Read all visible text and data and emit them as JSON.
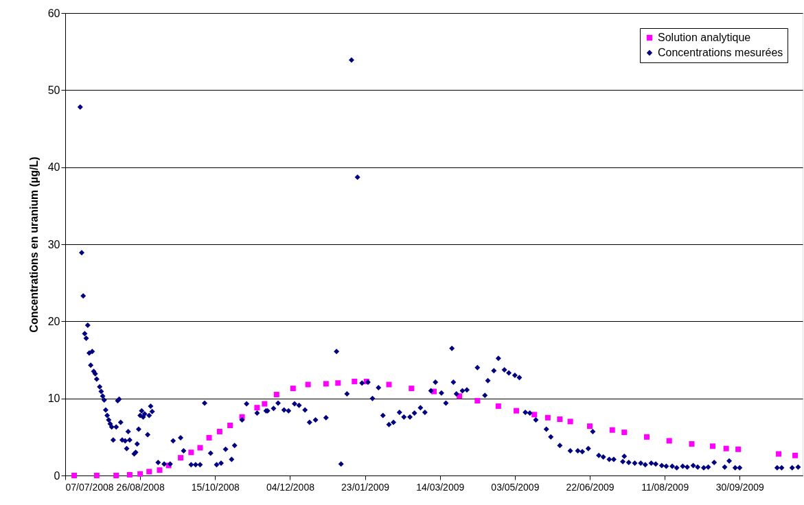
{
  "chart_data": {
    "type": "scatter",
    "ylabel": "Concentrations en uranium (µg/L)",
    "xlim": [
      "2008-07-07",
      "2009-11-11"
    ],
    "xticks": [
      {
        "value": "2008-07-07",
        "label": "07/07/2008"
      },
      {
        "value": "2008-08-26",
        "label": "26/08/2008"
      },
      {
        "value": "2008-10-15",
        "label": "15/10/2008"
      },
      {
        "value": "2008-12-04",
        "label": "04/12/2008"
      },
      {
        "value": "2009-01-23",
        "label": "23/01/2009"
      },
      {
        "value": "2009-03-14",
        "label": "14/03/2009"
      },
      {
        "value": "2009-05-03",
        "label": "03/05/2009"
      },
      {
        "value": "2009-06-22",
        "label": "22/06/2009"
      },
      {
        "value": "2009-08-11",
        "label": "11/08/2009"
      },
      {
        "value": "2009-09-30",
        "label": "30/09/2009"
      }
    ],
    "ylim": [
      0,
      60
    ],
    "yticks": [
      0,
      10,
      20,
      30,
      40,
      50,
      60
    ],
    "grid": "y",
    "legend": "top right",
    "series": [
      {
        "name": "Solution analytique",
        "color": "#ff00ff",
        "marker": "square",
        "x": [
          "2008-07-13",
          "2008-07-28",
          "2008-08-10",
          "2008-08-19",
          "2008-08-26",
          "2008-09-01",
          "2008-09-08",
          "2008-09-14",
          "2008-09-22",
          "2008-09-29",
          "2008-10-05",
          "2008-10-11",
          "2008-10-18",
          "2008-10-25",
          "2008-11-02",
          "2008-11-12",
          "2008-11-17",
          "2008-11-25",
          "2008-12-06",
          "2008-12-16",
          "2008-12-28",
          "2009-01-05",
          "2009-01-16",
          "2009-01-24",
          "2009-02-08",
          "2009-02-23",
          "2009-03-10",
          "2009-03-27",
          "2009-04-08",
          "2009-04-22",
          "2009-05-04",
          "2009-05-16",
          "2009-05-25",
          "2009-06-02",
          "2009-06-09",
          "2009-06-22",
          "2009-07-07",
          "2009-07-15",
          "2009-07-30",
          "2009-08-14",
          "2009-08-29",
          "2009-09-12",
          "2009-09-21",
          "2009-09-29",
          "2009-10-26",
          "2009-11-06"
        ],
        "values": [
          0.0,
          0.0,
          0.0,
          0.1,
          0.2,
          0.5,
          0.7,
          1.3,
          2.3,
          3.0,
          3.6,
          4.9,
          5.7,
          6.5,
          7.6,
          8.8,
          9.3,
          10.5,
          11.3,
          11.8,
          11.9,
          12.0,
          12.2,
          12.2,
          11.8,
          11.3,
          10.9,
          10.3,
          9.7,
          9.0,
          8.4,
          7.9,
          7.5,
          7.3,
          7.0,
          6.4,
          5.9,
          5.6,
          5.0,
          4.5,
          4.1,
          3.8,
          3.5,
          3.4,
          2.8,
          2.6
        ]
      },
      {
        "name": "Concentrations mesurées",
        "color": "#000080",
        "marker": "diamond",
        "x": [
          "2008-07-17",
          "2008-07-18",
          "2008-07-19",
          "2008-07-20",
          "2008-07-21",
          "2008-07-22",
          "2008-07-23",
          "2008-07-24",
          "2008-07-25",
          "2008-07-26",
          "2008-07-27",
          "2008-07-28",
          "2008-07-30",
          "2008-07-31",
          "2008-08-01",
          "2008-08-02",
          "2008-08-03",
          "2008-08-04",
          "2008-08-05",
          "2008-08-06",
          "2008-08-07",
          "2008-08-08",
          "2008-08-10",
          "2008-08-11",
          "2008-08-12",
          "2008-08-13",
          "2008-08-14",
          "2008-08-16",
          "2008-08-17",
          "2008-08-18",
          "2008-08-19",
          "2008-08-22",
          "2008-08-23",
          "2008-08-24",
          "2008-08-25",
          "2008-08-26",
          "2008-08-27",
          "2008-08-28",
          "2008-08-29",
          "2008-08-31",
          "2008-09-01",
          "2008-09-02",
          "2008-09-03",
          "2008-09-07",
          "2008-09-11",
          "2008-09-15",
          "2008-09-17",
          "2008-09-22",
          "2008-09-24",
          "2008-09-29",
          "2008-10-02",
          "2008-10-05",
          "2008-10-08",
          "2008-10-12",
          "2008-10-16",
          "2008-10-19",
          "2008-10-22",
          "2008-10-26",
          "2008-10-28",
          "2008-11-02",
          "2008-11-05",
          "2008-11-12",
          "2008-11-18",
          "2008-11-19",
          "2008-11-23",
          "2008-11-26",
          "2008-11-30",
          "2008-12-03",
          "2008-12-07",
          "2008-12-10",
          "2008-12-14",
          "2008-12-17",
          "2008-12-21",
          "2008-12-28",
          "2009-01-04",
          "2009-01-07",
          "2009-01-11",
          "2009-01-14",
          "2009-01-18",
          "2009-01-21",
          "2009-01-25",
          "2009-01-28",
          "2009-02-01",
          "2009-02-04",
          "2009-02-08",
          "2009-02-11",
          "2009-02-15",
          "2009-02-18",
          "2009-02-22",
          "2009-02-25",
          "2009-03-01",
          "2009-03-04",
          "2009-03-08",
          "2009-03-11",
          "2009-03-15",
          "2009-03-18",
          "2009-03-22",
          "2009-03-23",
          "2009-03-25",
          "2009-03-29",
          "2009-04-01",
          "2009-04-08",
          "2009-04-13",
          "2009-04-15",
          "2009-04-19",
          "2009-04-22",
          "2009-04-26",
          "2009-04-29",
          "2009-05-03",
          "2009-05-06",
          "2009-05-10",
          "2009-05-13",
          "2009-05-17",
          "2009-05-24",
          "2009-05-27",
          "2009-06-02",
          "2009-06-09",
          "2009-06-14",
          "2009-06-17",
          "2009-06-21",
          "2009-06-24",
          "2009-06-28",
          "2009-07-01",
          "2009-07-05",
          "2009-07-08",
          "2009-07-14",
          "2009-07-15",
          "2009-07-18",
          "2009-07-22",
          "2009-07-26",
          "2009-07-29",
          "2009-08-02",
          "2009-08-05",
          "2009-08-09",
          "2009-08-12",
          "2009-08-16",
          "2009-08-19",
          "2009-08-23",
          "2009-08-26",
          "2009-08-30",
          "2009-09-02",
          "2009-09-06",
          "2009-09-09",
          "2009-09-13",
          "2009-09-20",
          "2009-09-23",
          "2009-09-27",
          "2009-09-30",
          "2009-10-25",
          "2009-10-28",
          "2009-11-04",
          "2009-11-08"
        ],
        "values": [
          47.8,
          28.9,
          23.3,
          18.4,
          17.8,
          19.5,
          15.9,
          14.3,
          16.1,
          13.5,
          13.2,
          12.5,
          11.5,
          10.9,
          10.3,
          9.8,
          8.5,
          7.8,
          7.2,
          6.7,
          6.3,
          4.6,
          6.3,
          9.7,
          9.9,
          6.9,
          4.6,
          4.5,
          3.5,
          5.7,
          4.6,
          2.8,
          3.0,
          4.1,
          6.0,
          7.8,
          8.4,
          7.6,
          8.0,
          5.3,
          7.8,
          9.0,
          8.3,
          1.7,
          1.5,
          1.5,
          4.5,
          4.9,
          3.2,
          1.4,
          1.4,
          1.4,
          9.4,
          2.9,
          1.4,
          1.6,
          3.4,
          2.1,
          3.9,
          7.2,
          9.3,
          8.1,
          8.4,
          8.4,
          8.7,
          9.4,
          8.5,
          8.4,
          9.3,
          9.1,
          8.5,
          6.9,
          7.2,
          7.5,
          16.1,
          1.5,
          10.6,
          53.9,
          38.7,
          12.0,
          12.1,
          10.0,
          11.4,
          7.8,
          6.6,
          6.9,
          8.2,
          7.6,
          7.6,
          8.1,
          8.8,
          8.2,
          11.0,
          12.1,
          10.7,
          9.4,
          16.5,
          12.1,
          10.6,
          11.0,
          11.1,
          14.0,
          10.4,
          12.3,
          13.6,
          15.2,
          13.7,
          13.3,
          13.0,
          12.7,
          8.2,
          8.1,
          7.2,
          6.0,
          5.0,
          3.9,
          3.2,
          3.2,
          3.1,
          3.5,
          5.7,
          2.6,
          2.4,
          2.1,
          2.1,
          1.8,
          2.5,
          1.7,
          1.6,
          1.6,
          1.4,
          1.6,
          1.5,
          1.3,
          1.2,
          1.2,
          1.0,
          1.2,
          1.1,
          1.3,
          1.1,
          1.0,
          1.1,
          1.7,
          1.1,
          1.9,
          1.0,
          1.0,
          1.0,
          1.0,
          1.0,
          1.1
        ]
      }
    ]
  }
}
